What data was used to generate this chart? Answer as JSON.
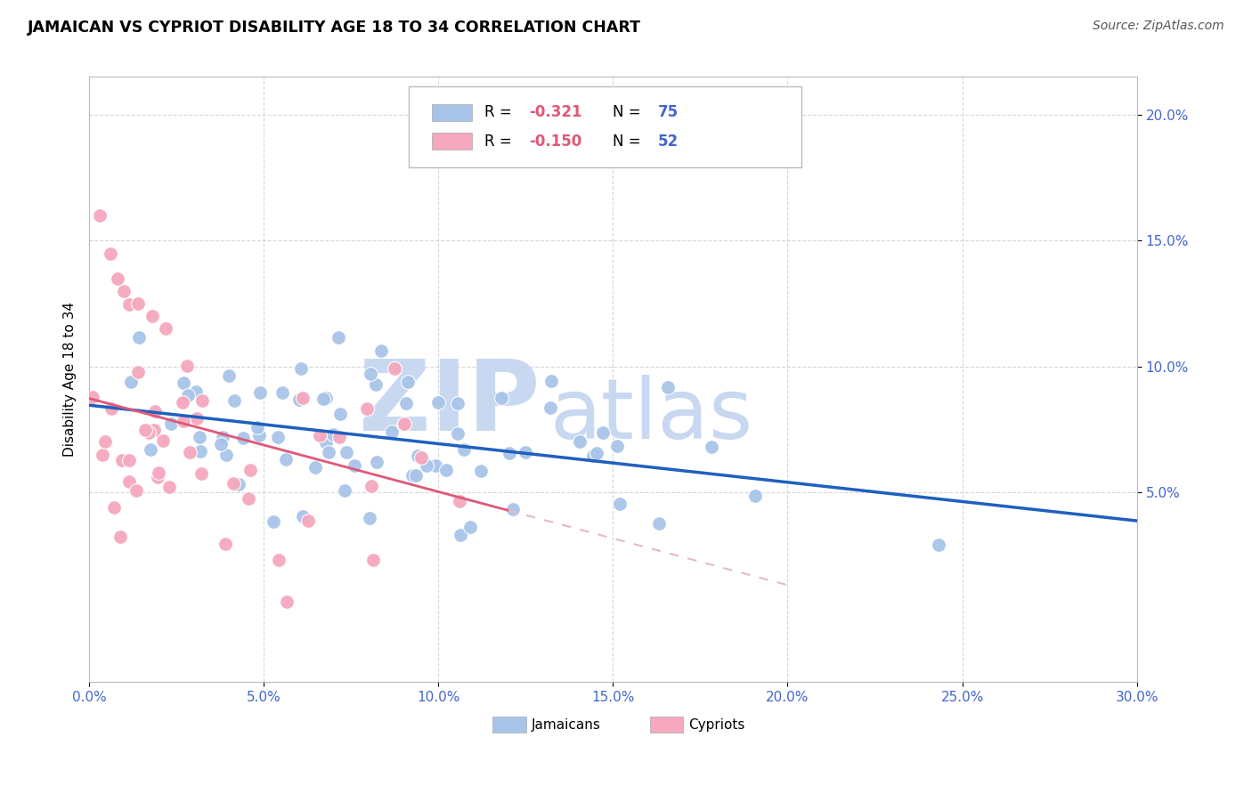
{
  "title": "JAMAICAN VS CYPRIOT DISABILITY AGE 18 TO 34 CORRELATION CHART",
  "source": "Source: ZipAtlas.com",
  "ylabel": "Disability Age 18 to 34",
  "legend_r1": "R = -0.321",
  "legend_n1": "N = 75",
  "legend_r2": "R = -0.150",
  "legend_n2": "N = 52",
  "blue_color": "#a8c4e8",
  "pink_color": "#f5a8be",
  "blue_line_color": "#1f5fbf",
  "pink_line_color": "#e05878",
  "pink_dash_color": "#e8b8c8",
  "watermark_zip": "ZIP",
  "watermark_atlas": "atlas",
  "watermark_color": "#c8d8f0",
  "background_color": "#ffffff",
  "grid_color": "#cccccc",
  "xlim": [
    0.0,
    0.3
  ],
  "ylim": [
    -0.025,
    0.215
  ],
  "x_ticks": [
    0.0,
    0.05,
    0.1,
    0.15,
    0.2,
    0.25,
    0.3
  ],
  "y_ticks": [
    0.05,
    0.1,
    0.15,
    0.2
  ],
  "tick_color": "#4466cc",
  "label_color": "#000000",
  "source_color": "#555555"
}
